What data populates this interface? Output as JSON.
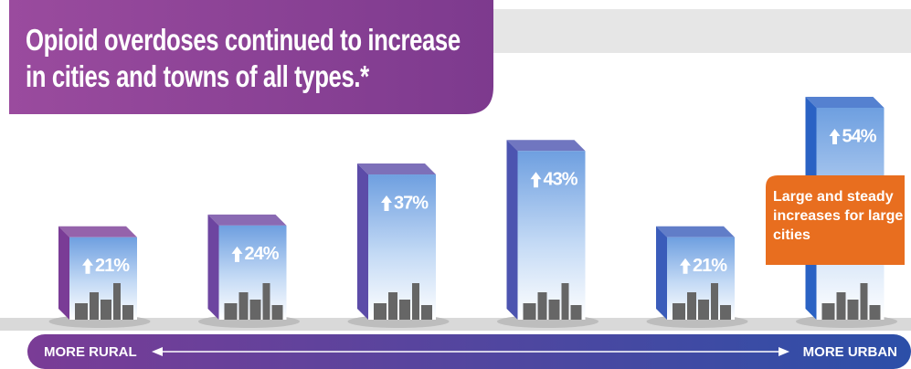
{
  "chart_data": {
    "type": "bar",
    "title": "Opioid overdoses continued to increase in cities and towns of all types.*",
    "categories": [
      null,
      null,
      null,
      null,
      null,
      null
    ],
    "values": [
      21,
      24,
      37,
      43,
      21,
      54
    ],
    "value_labels": [
      "21%",
      "24%",
      "37%",
      "43%",
      "21%",
      "54%"
    ],
    "colors": [
      "#7a3c96",
      "#6d45a0",
      "#5c4ca8",
      "#4c54b0",
      "#3a5cba",
      "#2a62c4"
    ],
    "annotation": "Large and steady increases for large cities",
    "x_left_label": "MORE RURAL",
    "x_right_label": "MORE URBAN"
  }
}
